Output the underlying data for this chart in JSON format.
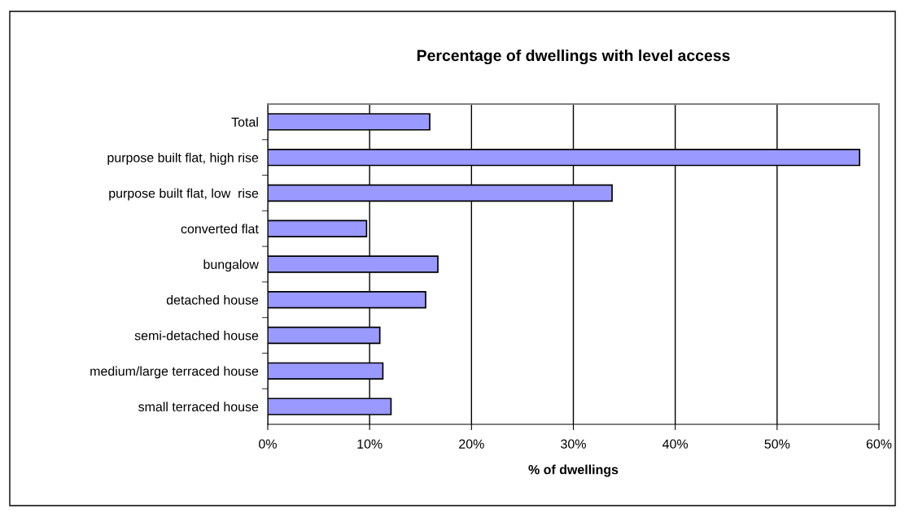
{
  "chart_data": {
    "type": "bar",
    "orientation": "horizontal",
    "title": "Percentage of dwellings with level access",
    "xlabel": "% of dwellings",
    "categories": [
      "Total",
      "purpose built flat, high rise",
      "purpose built flat, low  rise",
      "converted flat",
      "bungalow",
      "detached house",
      "semi-detached house",
      "medium/large terraced house",
      "small terraced house"
    ],
    "values": [
      15.9,
      58.1,
      33.8,
      9.7,
      16.7,
      15.5,
      11.0,
      11.3,
      12.1
    ],
    "color": "#9999ff",
    "xlim": [
      0,
      60
    ],
    "xticks": [
      {
        "value": 0,
        "label": "0%"
      },
      {
        "value": 10,
        "label": "10%"
      },
      {
        "value": 20,
        "label": "20%"
      },
      {
        "value": 30,
        "label": "30%"
      },
      {
        "value": 40,
        "label": "40%"
      },
      {
        "value": 50,
        "label": "50%"
      },
      {
        "value": 60,
        "label": "60%"
      }
    ],
    "grid": "x",
    "legend": false
  }
}
